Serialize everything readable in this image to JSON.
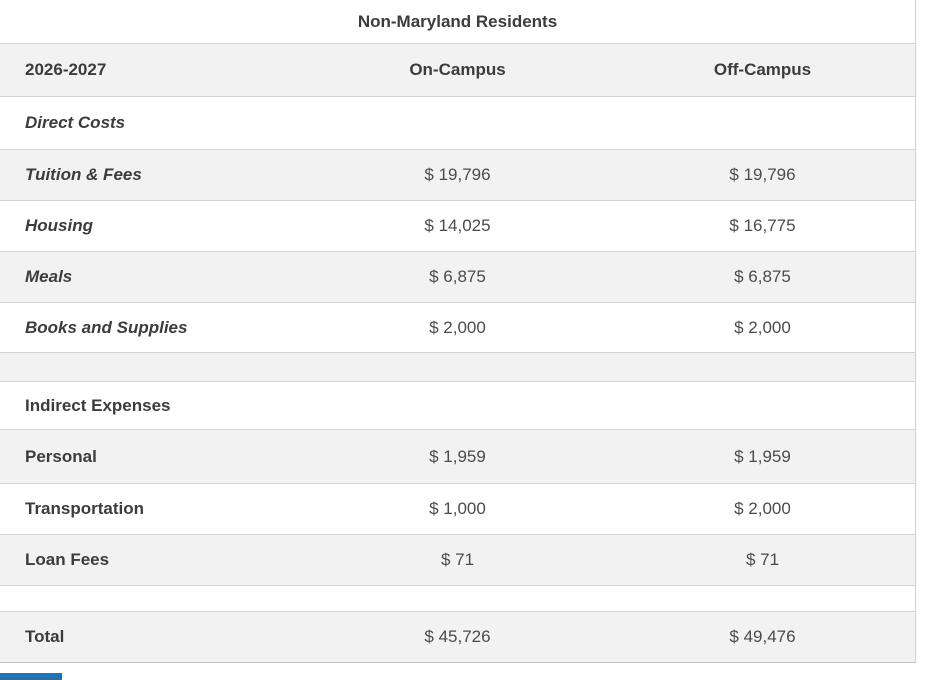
{
  "table": {
    "title": "Non-Maryland Residents",
    "header": {
      "year": "2026-2027",
      "on_campus_label": "On-Campus",
      "off_campus_label": "Off-Campus"
    },
    "sections": [
      {
        "header": "Direct Costs",
        "rows": [
          {
            "label": "Tuition & Fees",
            "on_campus": "$ 19,796",
            "off_campus": "$ 19,796"
          },
          {
            "label": "Housing",
            "on_campus": "$ 14,025",
            "off_campus": "$ 16,775"
          },
          {
            "label": "Meals",
            "on_campus": "$ 6,875",
            "off_campus": "$ 6,875"
          },
          {
            "label": "Books and Supplies",
            "on_campus": "$ 2,000",
            "off_campus": "$ 2,000"
          }
        ]
      },
      {
        "header": "Indirect Expenses",
        "rows": [
          {
            "label": "Personal",
            "on_campus": "$ 1,959",
            "off_campus": "$ 1,959"
          },
          {
            "label": "Transportation",
            "on_campus": "$ 1,000",
            "off_campus": "$ 2,000"
          },
          {
            "label": "Loan Fees",
            "on_campus": "$ 71",
            "off_campus": "$ 71"
          }
        ]
      }
    ],
    "total": {
      "label": "Total",
      "on_campus": "$ 45,726",
      "off_campus": "$ 49,476"
    }
  },
  "colors": {
    "row_stripe": "#f2f2f2",
    "row_border": "#d4d4d4",
    "label_text": "#3c3c3c",
    "value_text": "#4b4b4b",
    "partial_button_blue": "#2271b1"
  }
}
